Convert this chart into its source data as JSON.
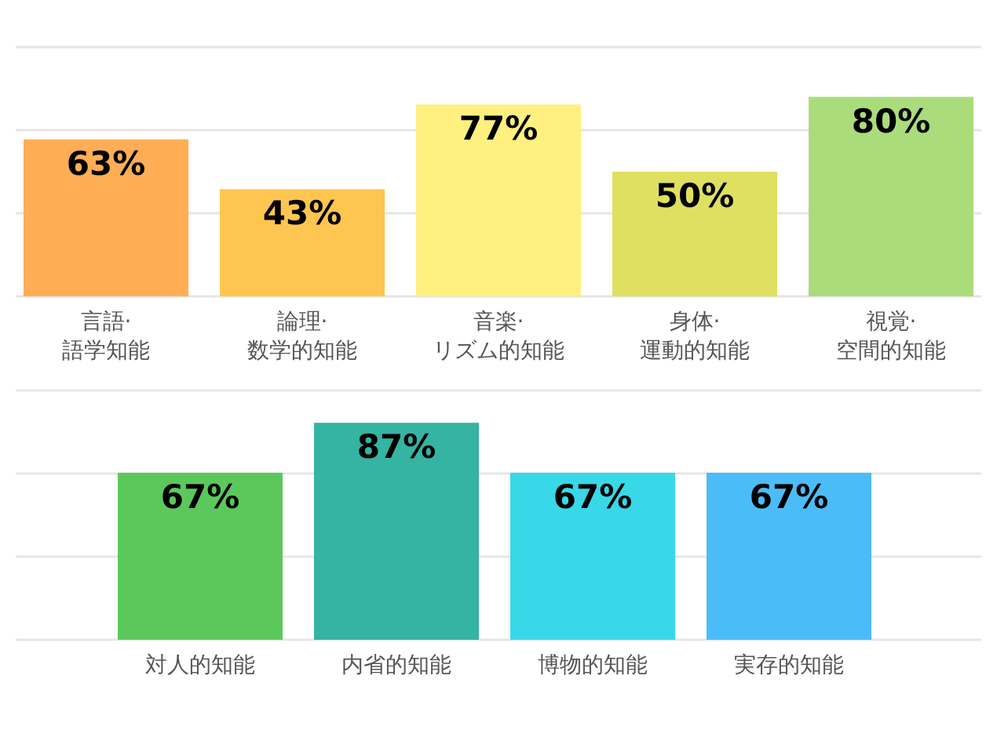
{
  "chart_data": [
    {
      "type": "bar",
      "categories": [
        "言語·語学知能",
        "論理·数学的知能",
        "音楽·リズム的知能",
        "身体·運動的知能",
        "視覚·空間的知能"
      ],
      "values": [
        63,
        43,
        77,
        50,
        80
      ],
      "colors": [
        "#ffae55",
        "#fec550",
        "#fff080",
        "#dfe060",
        "#aadc7c"
      ],
      "value_labels": [
        "63%",
        "43%",
        "77%",
        "50%",
        "80%"
      ],
      "ylim": [
        0,
        100
      ],
      "yticks": [
        {
          "value": 0,
          "label": null
        },
        {
          "value": 33.3,
          "label": null
        },
        {
          "value": 66.7,
          "label": null
        },
        {
          "value": 100,
          "label": null
        }
      ],
      "grid": "y",
      "tick_labels": "x"
    },
    {
      "type": "bar",
      "categories": [
        "対人的知能",
        "内省的知能",
        "博物的知能",
        "実存的知能"
      ],
      "values": [
        67,
        87,
        67,
        67
      ],
      "colors": [
        "#5cc85c",
        "#35b3a3",
        "#38d8e8",
        "#4cbcf8"
      ],
      "value_labels": [
        "67%",
        "87%",
        "67%",
        "67%"
      ],
      "ylim": [
        0,
        100
      ],
      "yticks": [
        {
          "value": 0,
          "label": null
        },
        {
          "value": 33.3,
          "label": null
        },
        {
          "value": 66.7,
          "label": null
        },
        {
          "value": 100,
          "label": null
        }
      ],
      "grid": "y",
      "tick_labels": "x"
    }
  ]
}
